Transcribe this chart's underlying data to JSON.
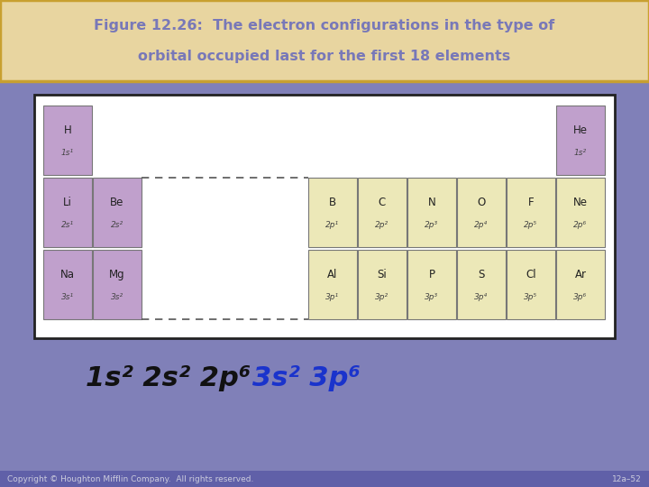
{
  "title_line1": "Figure 12.26:  The electron configurations in the type of",
  "title_line2": "orbital occupied last for the first 18 elements",
  "title_bg": "#e8d5a0",
  "title_border": "#c8a030",
  "title_text_color": "#7878b8",
  "main_bg": "#8080b8",
  "table_bg": "#ffffff",
  "table_border": "#222222",
  "s_cell_color": "#c0a0cc",
  "p_cell_color": "#ece8b8",
  "dashed_line_color": "#555555",
  "footer_bg": "#6060a8",
  "footer_text": "Copyright © Houghton Mifflin Company.  All rights reserved.",
  "footer_right": "12a–52",
  "elements": [
    {
      "symbol": "H",
      "config": "1s¹",
      "row": 0,
      "col": 0,
      "color": "#c0a0cc"
    },
    {
      "symbol": "He",
      "config": "1s²",
      "row": 0,
      "col": 7,
      "color": "#c0a0cc"
    },
    {
      "symbol": "Li",
      "config": "2s¹",
      "row": 1,
      "col": 0,
      "color": "#c0a0cc"
    },
    {
      "symbol": "Be",
      "config": "2s²",
      "row": 1,
      "col": 1,
      "color": "#c0a0cc"
    },
    {
      "symbol": "B",
      "config": "2p¹",
      "row": 1,
      "col": 2,
      "color": "#ece8b8"
    },
    {
      "symbol": "C",
      "config": "2p²",
      "row": 1,
      "col": 3,
      "color": "#ece8b8"
    },
    {
      "symbol": "N",
      "config": "2p³",
      "row": 1,
      "col": 4,
      "color": "#ece8b8"
    },
    {
      "symbol": "O",
      "config": "2p⁴",
      "row": 1,
      "col": 5,
      "color": "#ece8b8"
    },
    {
      "symbol": "F",
      "config": "2p⁵",
      "row": 1,
      "col": 6,
      "color": "#ece8b8"
    },
    {
      "symbol": "Ne",
      "config": "2p⁶",
      "row": 1,
      "col": 7,
      "color": "#ece8b8"
    },
    {
      "symbol": "Na",
      "config": "3s¹",
      "row": 2,
      "col": 0,
      "color": "#c0a0cc"
    },
    {
      "symbol": "Mg",
      "config": "3s²",
      "row": 2,
      "col": 1,
      "color": "#c0a0cc"
    },
    {
      "symbol": "Al",
      "config": "3p¹",
      "row": 2,
      "col": 2,
      "color": "#ece8b8"
    },
    {
      "symbol": "Si",
      "config": "3p²",
      "row": 2,
      "col": 3,
      "color": "#ece8b8"
    },
    {
      "symbol": "P",
      "config": "3p³",
      "row": 2,
      "col": 4,
      "color": "#ece8b8"
    },
    {
      "symbol": "S",
      "config": "3p⁴",
      "row": 2,
      "col": 5,
      "color": "#ece8b8"
    },
    {
      "symbol": "Cl",
      "config": "3p⁵",
      "row": 2,
      "col": 6,
      "color": "#ece8b8"
    },
    {
      "symbol": "Ar",
      "config": "3p⁶",
      "row": 2,
      "col": 7,
      "color": "#ece8b8"
    }
  ],
  "legend_color_black": "#111111",
  "legend_color_blue": "#1a33cc"
}
